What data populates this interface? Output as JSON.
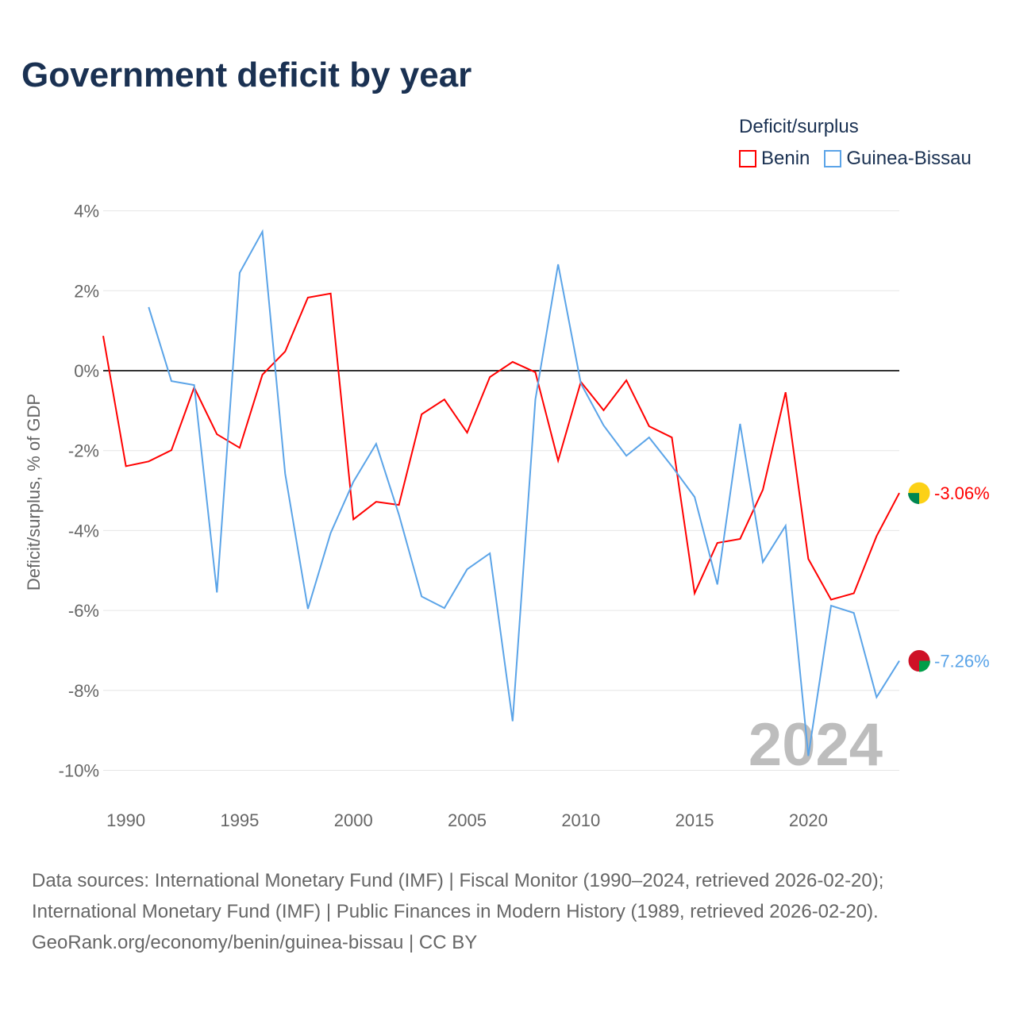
{
  "chart_data": {
    "type": "line",
    "title": "Government deficit by year",
    "ylabel": "Deficit/surplus, % of GDP",
    "xlabel": "",
    "legend_title": "Deficit/surplus",
    "legend_placement": "top-right",
    "ylim": [
      -10,
      4
    ],
    "xlim": [
      1989,
      2024
    ],
    "y_ticks": [
      "4%",
      "2%",
      "0%",
      "-2%",
      "-4%",
      "-6%",
      "-8%",
      "-10%"
    ],
    "y_tick_values": [
      4,
      2,
      0,
      -2,
      -4,
      -6,
      -8,
      -10
    ],
    "x_ticks": [
      "1990",
      "1995",
      "2000",
      "2005",
      "2010",
      "2015",
      "2020"
    ],
    "x_tick_values": [
      1990,
      1995,
      2000,
      2005,
      2010,
      2015,
      2020
    ],
    "year_watermark": "2024",
    "series": [
      {
        "name": "Benin",
        "color": "#ff0000",
        "end_label": "-3.06%",
        "start_year": 1989,
        "values": [
          0.87,
          -2.39,
          -2.27,
          -1.99,
          -0.42,
          -1.59,
          -1.93,
          -0.1,
          0.48,
          1.83,
          1.93,
          -3.72,
          -3.28,
          -3.36,
          -1.09,
          -0.72,
          -1.55,
          -0.16,
          0.22,
          -0.04,
          -2.25,
          -0.28,
          -0.99,
          -0.24,
          -1.39,
          -1.67,
          -5.57,
          -4.31,
          -4.21,
          -2.98,
          -0.54,
          -4.71,
          -5.73,
          -5.57,
          -4.14,
          -3.06
        ]
      },
      {
        "name": "Guinea-Bissau",
        "color": "#5ba4e8",
        "end_label": "-7.26%",
        "start_year": 1991,
        "values": [
          1.59,
          -0.26,
          -0.36,
          -5.55,
          2.45,
          3.48,
          -2.58,
          -5.96,
          -4.06,
          -2.78,
          -1.83,
          -3.6,
          -5.65,
          -5.94,
          -4.97,
          -4.57,
          -8.77,
          -0.72,
          2.66,
          -0.32,
          -1.37,
          -2.13,
          -1.67,
          -2.39,
          -3.16,
          -5.35,
          -1.33,
          -4.79,
          -3.88,
          -9.64,
          -5.88,
          -6.06,
          -8.17,
          -7.26
        ]
      }
    ]
  },
  "footer": {
    "line1": "Data sources: International Monetary Fund (IMF) | Fiscal Monitor (1990–2024, retrieved 2026-02-20);",
    "line2": "International Monetary Fund (IMF) | Public Finances in Modern History (1989, retrieved 2026-02-20).",
    "line3": "GeoRank.org/economy/benin/guinea-bissau | CC BY"
  }
}
